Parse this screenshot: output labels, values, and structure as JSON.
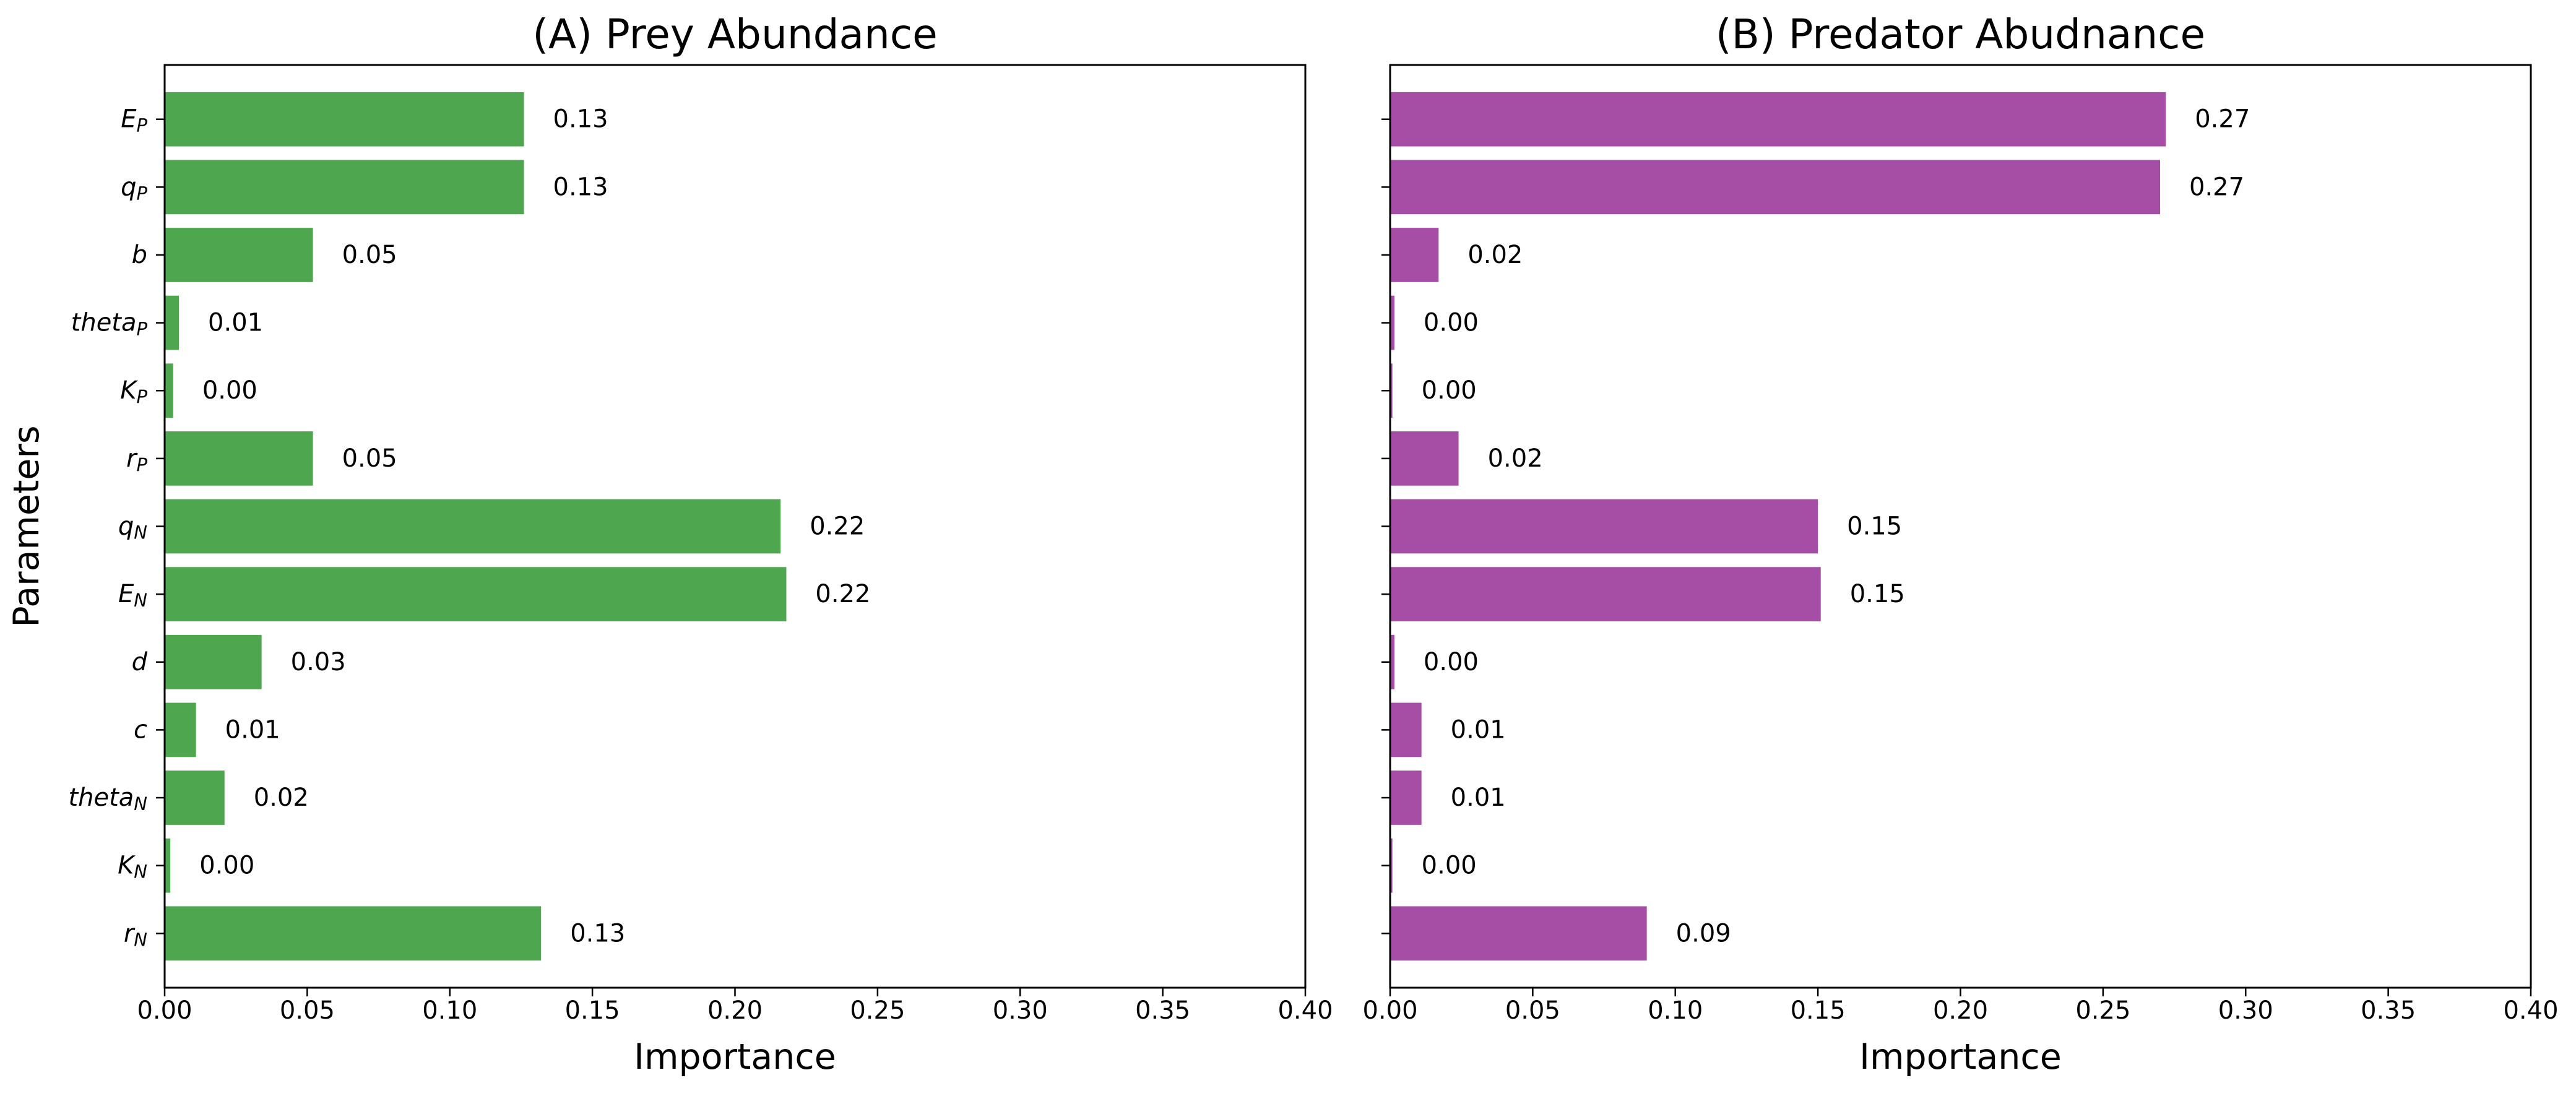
{
  "chart_data": [
    {
      "type": "bar",
      "orientation": "horizontal",
      "title": "(A) Prey Abundance",
      "xlabel": "Importance",
      "ylabel": "Parameters",
      "xlim": [
        0.0,
        0.4
      ],
      "xticks": [
        "0.00",
        "0.05",
        "0.10",
        "0.15",
        "0.20",
        "0.25",
        "0.30",
        "0.35",
        "0.40"
      ],
      "grid": false,
      "bar_color": "#4ea64e",
      "categories": [
        {
          "base": "E",
          "sub": "P"
        },
        {
          "base": "q",
          "sub": "P"
        },
        {
          "base": "b",
          "sub": ""
        },
        {
          "base": "theta",
          "sub": "P"
        },
        {
          "base": "K",
          "sub": "P"
        },
        {
          "base": "r",
          "sub": "P"
        },
        {
          "base": "q",
          "sub": "N"
        },
        {
          "base": "E",
          "sub": "N"
        },
        {
          "base": "d",
          "sub": ""
        },
        {
          "base": "c",
          "sub": ""
        },
        {
          "base": "theta",
          "sub": "N"
        },
        {
          "base": "K",
          "sub": "N"
        },
        {
          "base": "r",
          "sub": "N"
        }
      ],
      "values": [
        0.126,
        0.126,
        0.052,
        0.005,
        0.003,
        0.052,
        0.216,
        0.218,
        0.034,
        0.011,
        0.021,
        0.002,
        0.132
      ],
      "labels": [
        "0.13",
        "0.13",
        "0.05",
        "0.01",
        "0.00",
        "0.05",
        "0.22",
        "0.22",
        "0.03",
        "0.01",
        "0.02",
        "0.00",
        "0.13"
      ]
    },
    {
      "type": "bar",
      "orientation": "horizontal",
      "title": "(B) Predator Abudnance",
      "xlabel": "Importance",
      "ylabel": "",
      "xlim": [
        0.0,
        0.4
      ],
      "xticks": [
        "0.00",
        "0.05",
        "0.10",
        "0.15",
        "0.20",
        "0.25",
        "0.30",
        "0.35",
        "0.40"
      ],
      "grid": false,
      "bar_color": "#a64ea6",
      "categories": [
        {
          "base": "E",
          "sub": "P"
        },
        {
          "base": "q",
          "sub": "P"
        },
        {
          "base": "b",
          "sub": ""
        },
        {
          "base": "theta",
          "sub": "P"
        },
        {
          "base": "K",
          "sub": "P"
        },
        {
          "base": "r",
          "sub": "P"
        },
        {
          "base": "q",
          "sub": "N"
        },
        {
          "base": "E",
          "sub": "N"
        },
        {
          "base": "d",
          "sub": ""
        },
        {
          "base": "c",
          "sub": ""
        },
        {
          "base": "theta",
          "sub": "N"
        },
        {
          "base": "K",
          "sub": "N"
        },
        {
          "base": "r",
          "sub": "N"
        }
      ],
      "values": [
        0.272,
        0.27,
        0.017,
        0.0015,
        0.0008,
        0.024,
        0.15,
        0.151,
        0.0015,
        0.011,
        0.011,
        0.0008,
        0.09
      ],
      "labels": [
        "0.27",
        "0.27",
        "0.02",
        "0.00",
        "0.00",
        "0.02",
        "0.15",
        "0.15",
        "0.00",
        "0.01",
        "0.01",
        "0.00",
        "0.09"
      ]
    }
  ]
}
